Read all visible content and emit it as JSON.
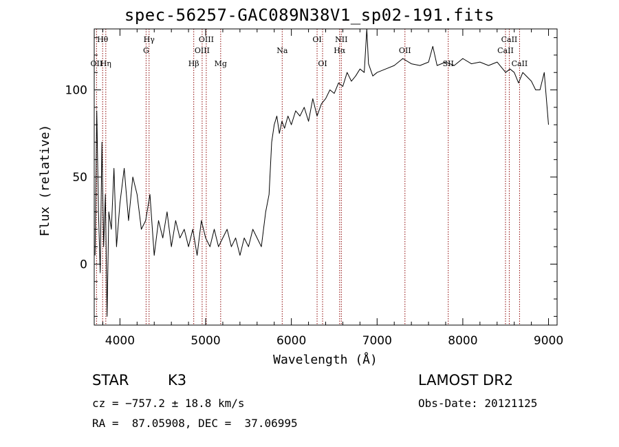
{
  "title": "spec-56257-GAC089N38V1_sp02-191.fits",
  "info": {
    "class": "STAR",
    "subclass": "K3",
    "survey": "LAMOST DR2",
    "cz": "cz = −757.2 ± 18.8 km/s",
    "obs_date": "Obs-Date: 20121125",
    "ra_dec": "RA =  87.05908, DEC =  37.06995"
  },
  "chart_data": {
    "type": "line",
    "title": "spec-56257-GAC089N38V1_sp02-191.fits",
    "xlabel": "Wavelength (Å)",
    "ylabel": "Flux (relative)",
    "xlim": [
      3700,
      9100
    ],
    "ylim": [
      -35,
      135
    ],
    "xticks": [
      4000,
      5000,
      6000,
      7000,
      8000,
      9000
    ],
    "yticks": [
      0,
      50,
      100
    ],
    "grid": false,
    "line_color": "#000000",
    "marker_color": "#8b0000",
    "lines": [
      {
        "label": "Hθ",
        "wave": 3798,
        "row": 1
      },
      {
        "label": "OII",
        "wave": 3727,
        "row": 3
      },
      {
        "label": "Hη",
        "wave": 3835,
        "row": 3
      },
      {
        "label": "Hγ",
        "wave": 4340,
        "row": 1
      },
      {
        "label": "G",
        "wave": 4305,
        "row": 2
      },
      {
        "label": "OIII",
        "wave": 5007,
        "row": 1
      },
      {
        "label": "OIII",
        "wave": 4959,
        "row": 2
      },
      {
        "label": "Hβ",
        "wave": 4861,
        "row": 3
      },
      {
        "label": "Mg",
        "wave": 5175,
        "row": 3
      },
      {
        "label": "Na",
        "wave": 5893,
        "row": 2
      },
      {
        "label": "OI",
        "wave": 6300,
        "row": 1
      },
      {
        "label": "OI",
        "wave": 6364,
        "row": 3
      },
      {
        "label": "NII",
        "wave": 6583,
        "row": 1
      },
      {
        "label": "Hα",
        "wave": 6563,
        "row": 2
      },
      {
        "label": "OII",
        "wave": 7325,
        "row": 2
      },
      {
        "label": "SII",
        "wave": 7830,
        "row": 3
      },
      {
        "label": "CaII",
        "wave": 8542,
        "row": 1
      },
      {
        "label": "CaII",
        "wave": 8498,
        "row": 2
      },
      {
        "label": "CaII",
        "wave": 8662,
        "row": 3
      }
    ],
    "spectrum": {
      "x": [
        3710,
        3730,
        3750,
        3770,
        3790,
        3810,
        3830,
        3850,
        3870,
        3900,
        3930,
        3960,
        4000,
        4050,
        4100,
        4150,
        4200,
        4250,
        4300,
        4350,
        4400,
        4450,
        4500,
        4550,
        4600,
        4650,
        4700,
        4750,
        4800,
        4850,
        4900,
        4950,
        5000,
        5050,
        5100,
        5150,
        5200,
        5250,
        5300,
        5350,
        5400,
        5450,
        5500,
        5550,
        5600,
        5650,
        5700,
        5740,
        5770,
        5800,
        5830,
        5860,
        5890,
        5920,
        5960,
        6000,
        6050,
        6100,
        6150,
        6200,
        6250,
        6300,
        6350,
        6400,
        6450,
        6500,
        6550,
        6600,
        6650,
        6700,
        6750,
        6800,
        6850,
        6880,
        6900,
        6950,
        7000,
        7100,
        7200,
        7300,
        7400,
        7500,
        7600,
        7650,
        7700,
        7800,
        7900,
        8000,
        8100,
        8200,
        8300,
        8400,
        8500,
        8550,
        8600,
        8650,
        8700,
        8800,
        8850,
        8900,
        8950,
        9000
      ],
      "y": [
        5,
        88,
        30,
        -5,
        70,
        10,
        40,
        -30,
        30,
        20,
        55,
        10,
        35,
        55,
        25,
        50,
        40,
        20,
        25,
        40,
        5,
        25,
        15,
        30,
        10,
        25,
        15,
        20,
        10,
        20,
        5,
        25,
        15,
        10,
        20,
        10,
        15,
        20,
        10,
        15,
        5,
        15,
        10,
        20,
        15,
        10,
        30,
        40,
        70,
        80,
        85,
        75,
        82,
        78,
        85,
        80,
        88,
        85,
        90,
        82,
        95,
        85,
        92,
        95,
        100,
        98,
        104,
        102,
        110,
        105,
        108,
        112,
        110,
        135,
        115,
        108,
        110,
        112,
        114,
        118,
        115,
        114,
        116,
        125,
        114,
        116,
        114,
        118,
        115,
        116,
        114,
        116,
        110,
        112,
        110,
        104,
        110,
        105,
        100,
        100,
        110,
        80
      ]
    }
  }
}
